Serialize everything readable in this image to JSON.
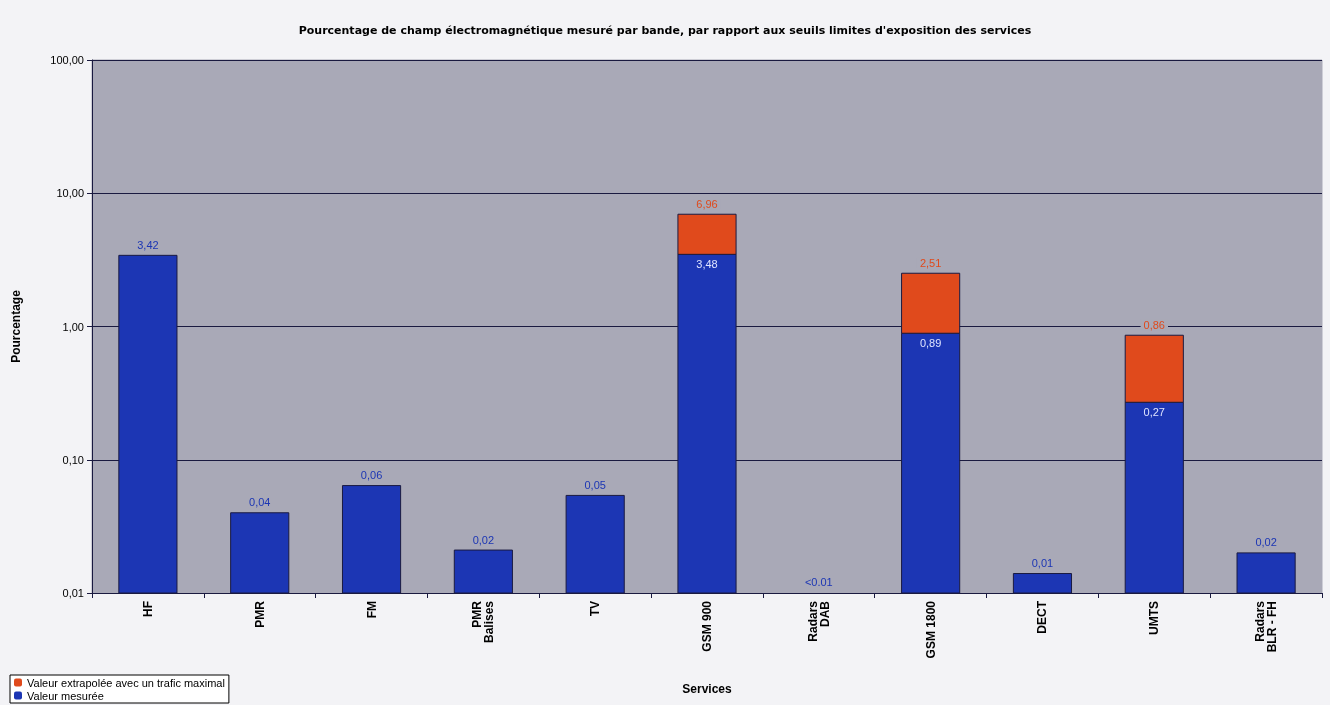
{
  "chart_data": {
    "type": "bar",
    "title": "Pourcentage de champ électromagnétique mesuré par bande, par rapport aux seuils limites d'exposition des services",
    "xlabel": "Services",
    "ylabel": "Pourcentage",
    "categories": [
      "HF",
      "PMR",
      "FM",
      "PMR\nBalises",
      "TV",
      "GSM 900",
      "Radars\nDAB",
      "GSM 1800",
      "DECT",
      "UMTS",
      "Radars\nBLR - FH"
    ],
    "stacked": true,
    "log": "y",
    "grid": "y",
    "legend": "bottom left",
    "ylim": [
      0.01,
      100
    ],
    "yticks": [
      {
        "value": 0.01,
        "label": "0,01"
      },
      {
        "value": 0.1,
        "label": "0,10"
      },
      {
        "value": 1,
        "label": "1,00"
      },
      {
        "value": 10,
        "label": "10,00"
      },
      {
        "value": 100,
        "label": "100,00"
      }
    ],
    "series": [
      {
        "name": "Valeur mesurée",
        "color": "#1c36b4",
        "values": [
          3.42,
          0.04,
          0.064,
          0.021,
          0.054,
          3.48,
          null,
          0.89,
          0.014,
          0.27,
          0.02
        ],
        "value_labels": [
          "3,42",
          "0,04",
          "0,06",
          "0,02",
          "0,05",
          "3,48",
          "<0.01",
          "0,89",
          "0,01",
          "0,27",
          "0,02"
        ]
      },
      {
        "name": "Valeur extrapolée avec un trafic maximal",
        "color": "#e04a1c",
        "values": [
          null,
          null,
          null,
          null,
          null,
          3.48,
          null,
          1.62,
          null,
          0.59,
          null
        ]
      }
    ],
    "totals": [
      null,
      null,
      null,
      null,
      null,
      "6,96",
      null,
      "2,51",
      null,
      "0,86",
      null
    ]
  }
}
